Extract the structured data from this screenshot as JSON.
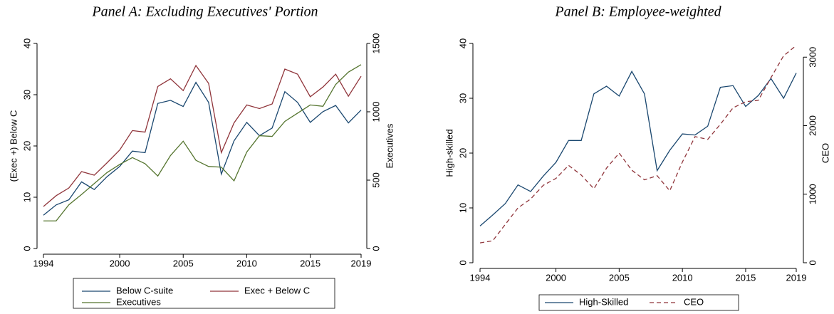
{
  "chart_data": [
    {
      "type": "line",
      "title": "Panel A: Excluding Executives' Portion",
      "y_label": "(Exec +) Below C",
      "y2_label": "Executives",
      "x": [
        1994,
        1995,
        1996,
        1997,
        1998,
        1999,
        2000,
        2001,
        2002,
        2003,
        2004,
        2005,
        2006,
        2007,
        2008,
        2009,
        2010,
        2011,
        2012,
        2013,
        2014,
        2015,
        2016,
        2017,
        2018,
        2019
      ],
      "xlim": [
        1994,
        2019
      ],
      "xticks": [
        1994,
        2000,
        2005,
        2010,
        2015,
        2019
      ],
      "ylim": [
        0,
        40
      ],
      "yticks": [
        0,
        10,
        20,
        30,
        40
      ],
      "y2lim": [
        0,
        1500
      ],
      "y2ticks": [
        0,
        500,
        1000,
        1500
      ],
      "series": [
        {
          "name": "Below C-suite",
          "color": "#1a476f",
          "axis": "y",
          "values": [
            6.5,
            8.5,
            9.5,
            13,
            11.5,
            14,
            16,
            19,
            18.7,
            28.3,
            28.9,
            27.7,
            32.4,
            28.5,
            14.5,
            21,
            24.6,
            22,
            23.5,
            30.6,
            28.5,
            24.6,
            26.7,
            27.9,
            24.5,
            27
          ]
        },
        {
          "name": "Exec + Below C",
          "color": "#90353b",
          "axis": "y",
          "values": [
            8.2,
            10.3,
            11.8,
            15,
            14.3,
            16.7,
            19.2,
            23,
            22.7,
            31.6,
            33.1,
            30.8,
            35.7,
            32.2,
            18.7,
            24.5,
            28,
            27.3,
            28.2,
            35,
            34,
            29.6,
            31.5,
            34,
            29.7,
            33.6
          ]
        },
        {
          "name": "Executives",
          "color": "#55752f",
          "axis": "y2",
          "values": [
            202,
            202,
            320,
            395,
            475,
            555,
            615,
            665,
            620,
            530,
            680,
            785,
            645,
            600,
            595,
            495,
            705,
            825,
            820,
            930,
            990,
            1050,
            1040,
            1200,
            1290,
            1345
          ]
        }
      ]
    },
    {
      "type": "line",
      "title": "Panel B: Employee-weighted",
      "y_label": "High-skilled",
      "y2_label": "CEO",
      "x": [
        1994,
        1995,
        1996,
        1997,
        1998,
        1999,
        2000,
        2001,
        2002,
        2003,
        2004,
        2005,
        2006,
        2007,
        2008,
        2009,
        2010,
        2011,
        2012,
        2013,
        2014,
        2015,
        2016,
        2017,
        2018,
        2019
      ],
      "xlim": [
        1994,
        2019
      ],
      "xticks": [
        1994,
        2000,
        2005,
        2010,
        2015,
        2019
      ],
      "ylim": [
        0,
        40
      ],
      "yticks": [
        0,
        10,
        20,
        30,
        40
      ],
      "y2lim": [
        0,
        3200
      ],
      "y2ticks": [
        0,
        1000,
        2000,
        3000
      ],
      "series": [
        {
          "name": "High-Skilled",
          "color": "#1a476f",
          "axis": "y",
          "line_style": "solid",
          "values": [
            6.7,
            8.7,
            10.8,
            14.2,
            13,
            15.8,
            18.3,
            22.3,
            22.3,
            30.8,
            32.2,
            30.4,
            34.9,
            30.8,
            16.8,
            20.5,
            23.5,
            23.3,
            24.9,
            32,
            32.3,
            28.5,
            30.5,
            33.6,
            30,
            34.6
          ]
        },
        {
          "name": "CEO",
          "color": "#90353b",
          "axis": "y2",
          "line_style": "dashed",
          "values": [
            290,
            320,
            560,
            800,
            930,
            1130,
            1230,
            1420,
            1280,
            1080,
            1380,
            1600,
            1350,
            1210,
            1270,
            1050,
            1470,
            1840,
            1800,
            2020,
            2260,
            2350,
            2370,
            2700,
            3020,
            3170
          ]
        }
      ]
    }
  ]
}
